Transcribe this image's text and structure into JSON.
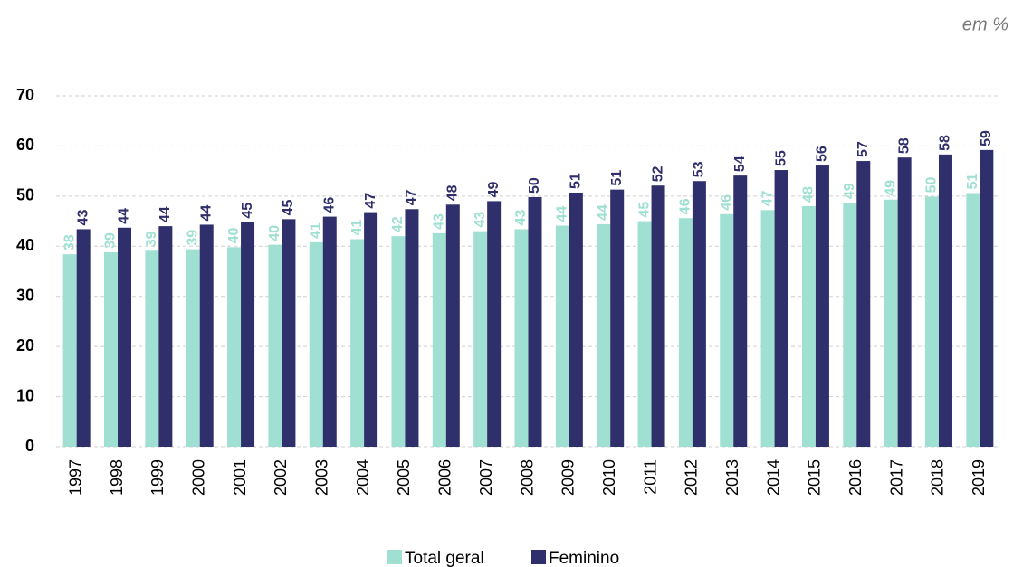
{
  "chart_data": {
    "type": "bar",
    "annotation": "em %",
    "categories": [
      "1997",
      "1998",
      "1999",
      "2000",
      "2001",
      "2002",
      "2003",
      "2004",
      "2005",
      "2006",
      "2007",
      "2008",
      "2009",
      "2010",
      "2011",
      "2012",
      "2013",
      "2014",
      "2015",
      "2016",
      "2017",
      "2018",
      "2019"
    ],
    "series": [
      {
        "name": "Total geral",
        "color": "#9fe0d3",
        "values": [
          38.4,
          38.8,
          39.1,
          39.4,
          39.8,
          40.3,
          40.8,
          41.4,
          42.0,
          42.6,
          43.0,
          43.4,
          44.1,
          44.4,
          45.0,
          45.6,
          46.4,
          47.2,
          48.0,
          48.7,
          49.3,
          49.9,
          50.6
        ],
        "value_labels": [
          "38",
          "39",
          "39",
          "39",
          "40",
          "40",
          "41",
          "41",
          "42",
          "43",
          "43",
          "43",
          "44",
          "44",
          "45",
          "46",
          "46",
          "47",
          "48",
          "49",
          "49",
          "50",
          "51"
        ]
      },
      {
        "name": "Feminino",
        "color": "#2f2f6b",
        "values": [
          43.4,
          43.7,
          44.0,
          44.3,
          44.8,
          45.4,
          45.9,
          46.8,
          47.4,
          48.3,
          49.0,
          49.8,
          50.7,
          51.3,
          52.1,
          53.0,
          54.1,
          55.2,
          56.1,
          57.0,
          57.7,
          58.3,
          59.2
        ],
        "value_labels": [
          "43",
          "44",
          "44",
          "44",
          "45",
          "45",
          "46",
          "47",
          "47",
          "48",
          "49",
          "50",
          "51",
          "51",
          "52",
          "53",
          "54",
          "55",
          "56",
          "57",
          "58",
          "58",
          "59"
        ]
      }
    ],
    "ylim": [
      0,
      70
    ],
    "yticks": [
      0,
      10,
      20,
      30,
      40,
      50,
      60,
      70
    ],
    "grid": true,
    "legend": "bottom"
  }
}
